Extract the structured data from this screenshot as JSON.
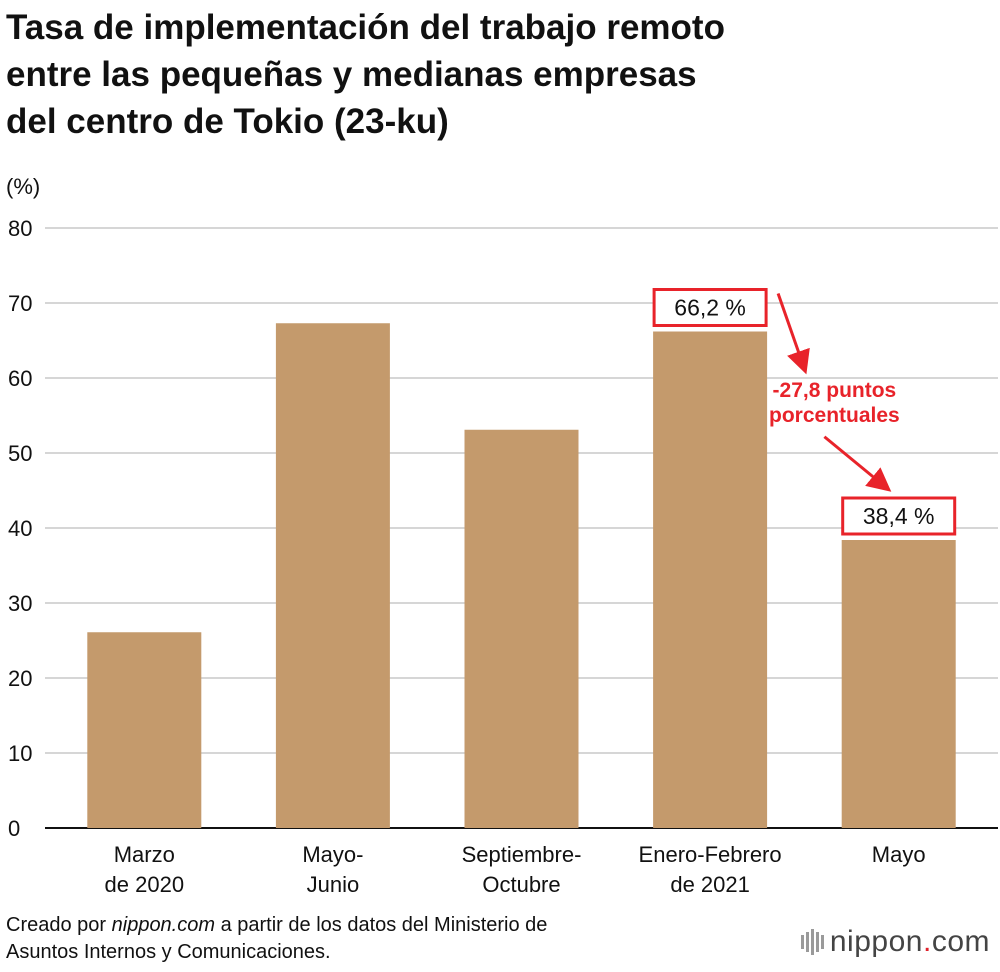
{
  "header": {
    "title_lines": [
      "Tasa de implementación del trabajo remoto",
      "entre las pequeñas y medianas empresas",
      "del centro de Tokio (23-ku)"
    ]
  },
  "chart_data": {
    "type": "bar",
    "title": "Tasa de implementación del trabajo remoto entre las pequeñas y medianas empresas del centro de Tokio (23-ku)",
    "ylabel": "(%)",
    "xlabel": "",
    "ylim": [
      0,
      80
    ],
    "yticks": [
      0,
      10,
      20,
      30,
      40,
      50,
      60,
      70,
      80
    ],
    "grid": true,
    "categories": [
      [
        "Marzo",
        "de 2020"
      ],
      [
        "Mayo-",
        "Junio"
      ],
      [
        "Septiembre-",
        "Octubre"
      ],
      [
        "Enero-Febrero",
        "de 2021"
      ],
      [
        "Mayo"
      ]
    ],
    "values": [
      26.1,
      67.3,
      53.1,
      66.2,
      38.4
    ],
    "bar_color": "#c49a6c",
    "data_labels": [
      {
        "index": 3,
        "text": "66,2 %"
      },
      {
        "index": 4,
        "text": "38,4 %"
      }
    ],
    "annotation": {
      "lines": [
        "-27,8 puntos",
        "porcentuales"
      ],
      "color": "#e8232a"
    }
  },
  "footer": {
    "source_prefix": "Creado por ",
    "source_site": "nippon.com",
    "source_suffix": " a partir de los datos del Ministerio de",
    "source_line2": "Asuntos Internos y Comunicaciones.",
    "brand_name": "nippon",
    "brand_dot": ".",
    "brand_tld": "com",
    "accent_color": "#e0212b"
  }
}
